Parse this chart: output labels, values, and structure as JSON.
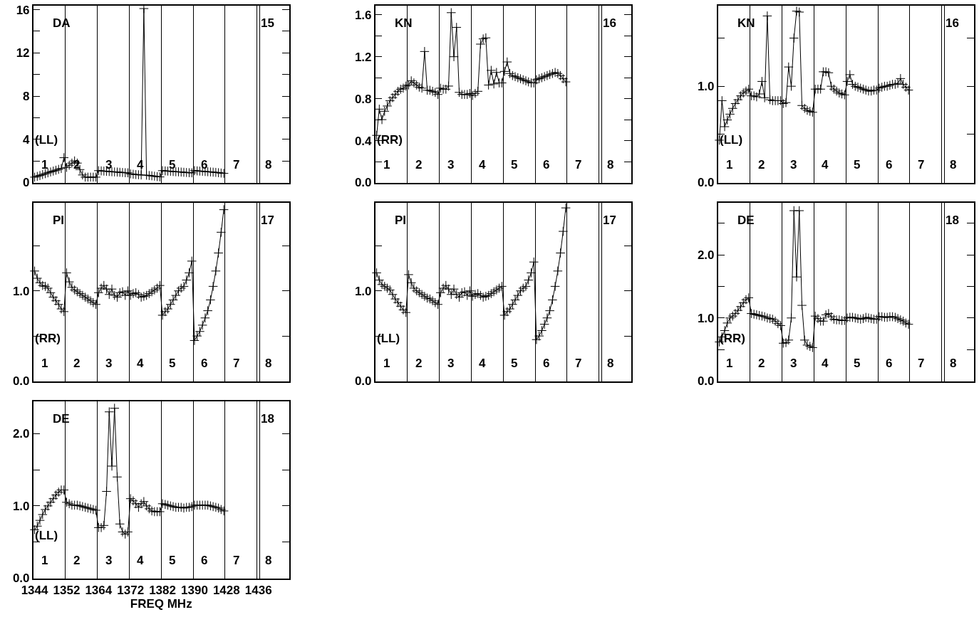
{
  "chart_data": [
    {
      "type": "line",
      "marker": "cross",
      "color": "#000000",
      "grid": "x",
      "tick_labels": "y",
      "annotations": [
        "DA",
        "15",
        "(LL)",
        "1",
        "2",
        "3",
        "4",
        "5",
        "6",
        "7",
        "8"
      ],
      "categories": [
        null,
        null,
        null,
        null,
        null,
        null,
        null,
        null,
        null,
        null,
        null,
        null,
        null,
        null,
        null,
        null,
        null,
        null,
        null,
        null,
        null,
        null,
        null,
        null,
        null,
        null,
        null,
        null,
        null,
        null,
        null,
        null,
        null,
        null,
        null,
        null,
        null,
        null,
        null,
        null,
        null,
        null,
        null,
        null,
        null,
        null,
        null,
        null,
        null,
        null,
        null,
        null,
        null,
        null,
        null,
        null,
        null,
        null,
        null,
        null,
        null,
        null,
        null,
        null,
        null,
        null,
        null,
        null,
        null,
        null,
        null,
        null,
        null,
        null,
        null,
        null,
        null,
        null,
        null,
        null,
        null,
        null,
        null,
        null,
        null,
        null,
        null,
        null,
        null,
        null,
        null,
        null,
        null,
        null,
        null,
        null
      ],
      "ylim": [
        0,
        16.4
      ],
      "yticks": [
        0,
        {
          "value": 2,
          "label": null
        },
        4,
        {
          "value": 6,
          "label": null
        },
        8,
        {
          "value": 10,
          "label": null
        },
        12,
        {
          "value": 14,
          "label": null
        },
        16
      ],
      "values": [
        0.5,
        0.57,
        0.65,
        0.74,
        0.82,
        0.9,
        0.98,
        1.06,
        1.14,
        1.22,
        1.3,
        2.3,
        1.4,
        1.6,
        1.8,
        2.0,
        1.8,
        1.2,
        0.7,
        0.5,
        0.5,
        0.5,
        0.5,
        0.5,
        1.1,
        1.08,
        1.06,
        1.04,
        1.02,
        1.0,
        0.98,
        0.97,
        0.95,
        0.93,
        0.91,
        0.9,
        0.8,
        0.77,
        0.74,
        0.72,
        0.7,
        16.1,
        0.68,
        0.65,
        0.62,
        0.59,
        0.55,
        0.52,
        1.1,
        1.08,
        1.06,
        1.04,
        1.02,
        1.0,
        0.99,
        0.97,
        0.95,
        0.93,
        0.91,
        0.9,
        1.1,
        1.08,
        1.06,
        1.04,
        1.02,
        1.0,
        0.98,
        0.96,
        0.94,
        0.91,
        0.88,
        0.85,
        null,
        null,
        null,
        null,
        null,
        null,
        null,
        null,
        null,
        null,
        null,
        null,
        null,
        null,
        null,
        null,
        null,
        null,
        null,
        null,
        null,
        null,
        null,
        null
      ]
    },
    {
      "type": "line",
      "marker": "cross",
      "color": "#000000",
      "grid": "x",
      "tick_labels": "y",
      "annotations": [
        "KN",
        "16",
        "(RR)",
        "1",
        "2",
        "3",
        "4",
        "5",
        "6",
        "7",
        "8"
      ],
      "categories": [
        null,
        null,
        null,
        null,
        null,
        null,
        null,
        null,
        null,
        null,
        null,
        null,
        null,
        null,
        null,
        null,
        null,
        null,
        null,
        null,
        null,
        null,
        null,
        null,
        null,
        null,
        null,
        null,
        null,
        null,
        null,
        null,
        null,
        null,
        null,
        null,
        null,
        null,
        null,
        null,
        null,
        null,
        null,
        null,
        null,
        null,
        null,
        null,
        null,
        null,
        null,
        null,
        null,
        null,
        null,
        null,
        null,
        null,
        null,
        null,
        null,
        null,
        null,
        null,
        null,
        null,
        null,
        null,
        null,
        null,
        null,
        null,
        null,
        null,
        null,
        null,
        null,
        null,
        null,
        null,
        null,
        null,
        null,
        null,
        null,
        null,
        null,
        null,
        null,
        null,
        null,
        null,
        null,
        null,
        null,
        null
      ],
      "ylim": [
        0,
        1.69
      ],
      "yticks": [
        {
          "value": 0,
          "label": "0.0"
        },
        {
          "value": 0.2,
          "label": null
        },
        0.4,
        {
          "value": 0.6,
          "label": null
        },
        0.8,
        {
          "value": 1.0,
          "label": null
        },
        1.2,
        {
          "value": 1.4,
          "label": null
        },
        1.6
      ],
      "values": [
        0.45,
        0.7,
        0.6,
        0.68,
        0.73,
        0.78,
        0.81,
        0.84,
        0.87,
        0.89,
        0.9,
        0.92,
        0.93,
        0.97,
        0.95,
        0.93,
        0.91,
        0.9,
        1.25,
        0.88,
        0.88,
        0.87,
        0.86,
        0.84,
        0.9,
        0.89,
        0.89,
        0.92,
        1.62,
        1.2,
        1.48,
        0.86,
        0.84,
        0.84,
        0.84,
        0.85,
        0.83,
        0.85,
        0.87,
        1.32,
        1.37,
        1.38,
        0.93,
        1.07,
        0.94,
        1.05,
        0.95,
        0.95,
        1.06,
        1.15,
        1.04,
        1.02,
        1.01,
        1.0,
        0.99,
        0.98,
        0.97,
        0.96,
        0.95,
        0.95,
        0.98,
        0.99,
        1.0,
        1.01,
        1.02,
        1.03,
        1.04,
        1.05,
        1.04,
        1.02,
        0.99,
        0.96,
        null,
        null,
        null,
        null,
        null,
        null,
        null,
        null,
        null,
        null,
        null,
        null,
        null,
        null,
        null,
        null,
        null,
        null,
        null,
        null,
        null,
        null,
        null,
        null
      ]
    },
    {
      "type": "line",
      "marker": "cross",
      "color": "#000000",
      "grid": "x",
      "tick_labels": "y",
      "annotations": [
        "KN",
        "16",
        "(LL)",
        "1",
        "2",
        "3",
        "4",
        "5",
        "6",
        "7",
        "8"
      ],
      "categories": [
        null,
        null,
        null,
        null,
        null,
        null,
        null,
        null,
        null,
        null,
        null,
        null,
        null,
        null,
        null,
        null,
        null,
        null,
        null,
        null,
        null,
        null,
        null,
        null,
        null,
        null,
        null,
        null,
        null,
        null,
        null,
        null,
        null,
        null,
        null,
        null,
        null,
        null,
        null,
        null,
        null,
        null,
        null,
        null,
        null,
        null,
        null,
        null,
        null,
        null,
        null,
        null,
        null,
        null,
        null,
        null,
        null,
        null,
        null,
        null,
        null,
        null,
        null,
        null,
        null,
        null,
        null,
        null,
        null,
        null,
        null,
        null,
        null,
        null,
        null,
        null,
        null,
        null,
        null,
        null,
        null,
        null,
        null,
        null,
        null,
        null,
        null,
        null,
        null,
        null,
        null,
        null,
        null,
        null,
        null,
        null
      ],
      "ylim": [
        0,
        1.84
      ],
      "yticks": [
        {
          "value": 0,
          "label": "0.0"
        },
        {
          "value": 0.5,
          "label": null
        },
        {
          "value": 1.0,
          "label": "1.0"
        },
        {
          "value": 1.5,
          "label": null
        }
      ],
      "values": [
        0.44,
        0.85,
        0.58,
        0.65,
        0.71,
        0.77,
        0.82,
        0.86,
        0.9,
        0.93,
        0.95,
        0.97,
        0.9,
        0.9,
        0.89,
        0.92,
        1.05,
        0.88,
        1.73,
        0.86,
        0.85,
        0.85,
        0.85,
        0.85,
        0.82,
        0.83,
        1.2,
        1.0,
        1.5,
        1.78,
        1.77,
        0.8,
        0.77,
        0.75,
        0.74,
        0.73,
        0.97,
        0.97,
        0.97,
        1.15,
        1.15,
        1.14,
        1.0,
        0.97,
        0.95,
        0.93,
        0.92,
        0.91,
        1.05,
        1.12,
        1.02,
        1.0,
        0.99,
        0.98,
        0.97,
        0.96,
        0.95,
        0.95,
        0.96,
        0.96,
        0.98,
        0.99,
        1.0,
        1.0,
        1.01,
        1.02,
        1.02,
        1.03,
        1.08,
        1.02,
        0.99,
        0.96,
        null,
        null,
        null,
        null,
        null,
        null,
        null,
        null,
        null,
        null,
        null,
        null,
        null,
        null,
        null,
        null,
        null,
        null,
        null,
        null,
        null,
        null,
        null,
        null
      ]
    },
    {
      "type": "line",
      "marker": "cross",
      "color": "#000000",
      "grid": "x",
      "tick_labels": "y",
      "annotations": [
        "PI",
        "17",
        "(RR)",
        "1",
        "2",
        "3",
        "4",
        "5",
        "6",
        "7",
        "8"
      ],
      "categories": [
        null,
        null,
        null,
        null,
        null,
        null,
        null,
        null,
        null,
        null,
        null,
        null,
        null,
        null,
        null,
        null,
        null,
        null,
        null,
        null,
        null,
        null,
        null,
        null,
        null,
        null,
        null,
        null,
        null,
        null,
        null,
        null,
        null,
        null,
        null,
        null,
        null,
        null,
        null,
        null,
        null,
        null,
        null,
        null,
        null,
        null,
        null,
        null,
        null,
        null,
        null,
        null,
        null,
        null,
        null,
        null,
        null,
        null,
        null,
        null,
        null,
        null,
        null,
        null,
        null,
        null,
        null,
        null,
        null,
        null,
        null,
        null,
        null,
        null,
        null,
        null,
        null,
        null,
        null,
        null,
        null,
        null,
        null,
        null,
        null,
        null,
        null,
        null,
        null,
        null,
        null,
        null,
        null,
        null,
        null,
        null
      ],
      "ylim": [
        0,
        1.98
      ],
      "yticks": [
        {
          "value": 0,
          "label": "0.0"
        },
        {
          "value": 0.5,
          "label": null
        },
        {
          "value": 1.0,
          "label": "1.0"
        },
        {
          "value": 1.5,
          "label": null
        }
      ],
      "values": [
        1.22,
        1.14,
        1.09,
        1.06,
        1.05,
        1.03,
        0.98,
        0.93,
        0.89,
        0.85,
        0.8,
        0.77,
        1.2,
        1.1,
        1.04,
        1.01,
        0.99,
        0.97,
        0.95,
        0.93,
        0.91,
        0.89,
        0.87,
        0.85,
        0.98,
        1.03,
        1.06,
        1.02,
        0.96,
        1.02,
        0.95,
        0.93,
        0.98,
        0.99,
        0.95,
        1.0,
        0.95,
        0.97,
        0.98,
        0.96,
        0.93,
        0.94,
        0.95,
        0.97,
        0.99,
        1.01,
        1.03,
        1.06,
        0.73,
        0.77,
        0.8,
        0.85,
        0.9,
        0.95,
        1.0,
        1.03,
        1.05,
        1.12,
        1.2,
        1.33,
        0.45,
        0.5,
        0.55,
        0.62,
        0.7,
        0.78,
        0.9,
        1.05,
        1.22,
        1.42,
        1.65,
        1.9,
        null,
        null,
        null,
        null,
        null,
        null,
        null,
        null,
        null,
        null,
        null,
        null,
        null,
        null,
        null,
        null,
        null,
        null,
        null,
        null,
        null,
        null,
        null,
        null
      ]
    },
    {
      "type": "line",
      "marker": "cross",
      "color": "#000000",
      "grid": "x",
      "tick_labels": "y",
      "annotations": [
        "PI",
        "17",
        "(LL)",
        "1",
        "2",
        "3",
        "4",
        "5",
        "6",
        "7",
        "8"
      ],
      "categories": [
        null,
        null,
        null,
        null,
        null,
        null,
        null,
        null,
        null,
        null,
        null,
        null,
        null,
        null,
        null,
        null,
        null,
        null,
        null,
        null,
        null,
        null,
        null,
        null,
        null,
        null,
        null,
        null,
        null,
        null,
        null,
        null,
        null,
        null,
        null,
        null,
        null,
        null,
        null,
        null,
        null,
        null,
        null,
        null,
        null,
        null,
        null,
        null,
        null,
        null,
        null,
        null,
        null,
        null,
        null,
        null,
        null,
        null,
        null,
        null,
        null,
        null,
        null,
        null,
        null,
        null,
        null,
        null,
        null,
        null,
        null,
        null,
        null,
        null,
        null,
        null,
        null,
        null,
        null,
        null,
        null,
        null,
        null,
        null,
        null,
        null,
        null,
        null,
        null,
        null,
        null,
        null,
        null,
        null,
        null,
        null
      ],
      "ylim": [
        0,
        1.98
      ],
      "yticks": [
        {
          "value": 0,
          "label": "0.0"
        },
        {
          "value": 0.5,
          "label": null
        },
        {
          "value": 1.0,
          "label": "1.0"
        },
        {
          "value": 1.5,
          "label": null
        }
      ],
      "values": [
        1.2,
        1.12,
        1.07,
        1.05,
        1.03,
        1.01,
        0.96,
        0.91,
        0.87,
        0.83,
        0.79,
        0.76,
        1.18,
        1.09,
        1.03,
        1.0,
        0.98,
        0.96,
        0.94,
        0.92,
        0.91,
        0.89,
        0.87,
        0.85,
        0.98,
        1.03,
        1.06,
        1.02,
        0.96,
        1.02,
        0.96,
        0.93,
        0.98,
        0.99,
        0.95,
        1.0,
        0.94,
        0.96,
        0.97,
        0.95,
        0.93,
        0.94,
        0.95,
        0.97,
        0.99,
        1.01,
        1.03,
        1.05,
        0.73,
        0.77,
        0.8,
        0.85,
        0.9,
        0.95,
        1.0,
        1.03,
        1.05,
        1.12,
        1.2,
        1.32,
        0.46,
        0.5,
        0.56,
        0.63,
        0.7,
        0.78,
        0.9,
        1.05,
        1.22,
        1.42,
        1.66,
        1.92,
        null,
        null,
        null,
        null,
        null,
        null,
        null,
        null,
        null,
        null,
        null,
        null,
        null,
        null,
        null,
        null,
        null,
        null,
        null,
        null,
        null,
        null,
        null,
        null
      ]
    },
    {
      "type": "line",
      "marker": "cross",
      "color": "#000000",
      "grid": "x",
      "tick_labels": "y",
      "annotations": [
        "DE",
        "18",
        "(RR)",
        "1",
        "2",
        "3",
        "4",
        "5",
        "6",
        "7",
        "8"
      ],
      "categories": [
        null,
        null,
        null,
        null,
        null,
        null,
        null,
        null,
        null,
        null,
        null,
        null,
        null,
        null,
        null,
        null,
        null,
        null,
        null,
        null,
        null,
        null,
        null,
        null,
        null,
        null,
        null,
        null,
        null,
        null,
        null,
        null,
        null,
        null,
        null,
        null,
        null,
        null,
        null,
        null,
        null,
        null,
        null,
        null,
        null,
        null,
        null,
        null,
        null,
        null,
        null,
        null,
        null,
        null,
        null,
        null,
        null,
        null,
        null,
        null,
        null,
        null,
        null,
        null,
        null,
        null,
        null,
        null,
        null,
        null,
        null,
        null,
        null,
        null,
        null,
        null,
        null,
        null,
        null,
        null,
        null,
        null,
        null,
        null,
        null,
        null,
        null,
        null,
        null,
        null,
        null,
        null,
        null,
        null,
        null,
        null
      ],
      "ylim": [
        0,
        2.83
      ],
      "yticks": [
        {
          "value": 0,
          "label": "0.0"
        },
        {
          "value": 0.5,
          "label": null
        },
        {
          "value": 1.0,
          "label": "1.0"
        },
        {
          "value": 1.5,
          "label": null
        },
        {
          "value": 2.0,
          "label": "2.0"
        },
        {
          "value": 2.5,
          "label": null
        }
      ],
      "values": [
        0.62,
        0.7,
        0.8,
        0.92,
        1.0,
        1.03,
        1.07,
        1.12,
        1.18,
        1.24,
        1.29,
        1.32,
        1.07,
        1.06,
        1.05,
        1.04,
        1.03,
        1.02,
        1.0,
        0.99,
        0.98,
        0.95,
        0.91,
        0.88,
        0.6,
        0.61,
        0.65,
        1.0,
        2.7,
        1.65,
        2.7,
        1.2,
        0.65,
        0.57,
        0.55,
        0.53,
        1.03,
        0.99,
        0.95,
        0.95,
        1.05,
        1.07,
        1.02,
        0.98,
        0.97,
        0.97,
        0.96,
        0.96,
        1.0,
        1.01,
        1.01,
        1.0,
        0.99,
        0.98,
        0.99,
        1.01,
        1.0,
        0.99,
        0.98,
        0.98,
        1.02,
        1.02,
        1.01,
        1.01,
        1.02,
        1.02,
        1.01,
        0.99,
        0.97,
        0.95,
        0.92,
        0.9,
        null,
        null,
        null,
        null,
        null,
        null,
        null,
        null,
        null,
        null,
        null,
        null,
        null,
        null,
        null,
        null,
        null,
        null,
        null,
        null,
        null,
        null,
        null,
        null
      ]
    },
    {
      "type": "line",
      "marker": "cross",
      "color": "#000000",
      "grid": "x",
      "xlabel": "FREQ MHz",
      "annotations": [
        "DE",
        "18",
        "(LL)",
        "1",
        "2",
        "3",
        "4",
        "5",
        "6",
        "7",
        "8"
      ],
      "categories": [
        "1344",
        null,
        null,
        null,
        null,
        null,
        null,
        null,
        null,
        null,
        null,
        null,
        "1352",
        null,
        null,
        null,
        null,
        null,
        null,
        null,
        null,
        null,
        null,
        null,
        "1364",
        null,
        null,
        null,
        null,
        null,
        null,
        null,
        null,
        null,
        null,
        null,
        "1372",
        null,
        null,
        null,
        null,
        null,
        null,
        null,
        null,
        null,
        null,
        null,
        "1382",
        null,
        null,
        null,
        null,
        null,
        null,
        null,
        null,
        null,
        null,
        null,
        "1390",
        null,
        null,
        null,
        null,
        null,
        null,
        null,
        null,
        null,
        null,
        null,
        "1428",
        null,
        null,
        null,
        null,
        null,
        null,
        null,
        null,
        null,
        null,
        null,
        "1436",
        null,
        null,
        null,
        null,
        null,
        null,
        null,
        null,
        null,
        null,
        null
      ],
      "ylim": [
        0,
        2.45
      ],
      "yticks": [
        {
          "value": 0,
          "label": "0.0"
        },
        {
          "value": 0.5,
          "label": null
        },
        {
          "value": 1.0,
          "label": "1.0"
        },
        {
          "value": 1.5,
          "label": null
        },
        {
          "value": 2.0,
          "label": "2.0"
        }
      ],
      "values": [
        0.67,
        0.72,
        0.8,
        0.88,
        0.95,
        1.0,
        1.05,
        1.1,
        1.15,
        1.19,
        1.22,
        1.22,
        1.05,
        1.03,
        1.01,
        1.01,
        1.01,
        1.0,
        0.99,
        0.98,
        0.97,
        0.96,
        0.95,
        0.94,
        0.7,
        0.7,
        0.73,
        1.2,
        2.3,
        1.55,
        2.35,
        1.4,
        0.75,
        0.64,
        0.61,
        0.64,
        1.1,
        1.07,
        1.03,
        0.98,
        1.03,
        1.06,
        1.0,
        0.96,
        0.93,
        0.92,
        0.92,
        0.92,
        1.03,
        1.02,
        1.01,
        1.0,
        0.99,
        0.98,
        0.98,
        0.98,
        0.97,
        0.98,
        0.98,
        0.99,
        1.01,
        1.01,
        1.01,
        1.01,
        1.01,
        1.01,
        1.0,
        0.99,
        0.98,
        0.97,
        0.95,
        0.93,
        null,
        null,
        null,
        null,
        null,
        null,
        null,
        null,
        null,
        null,
        null,
        null,
        null,
        null,
        null,
        null,
        null,
        null,
        null,
        null,
        null,
        null,
        null,
        null
      ]
    }
  ]
}
